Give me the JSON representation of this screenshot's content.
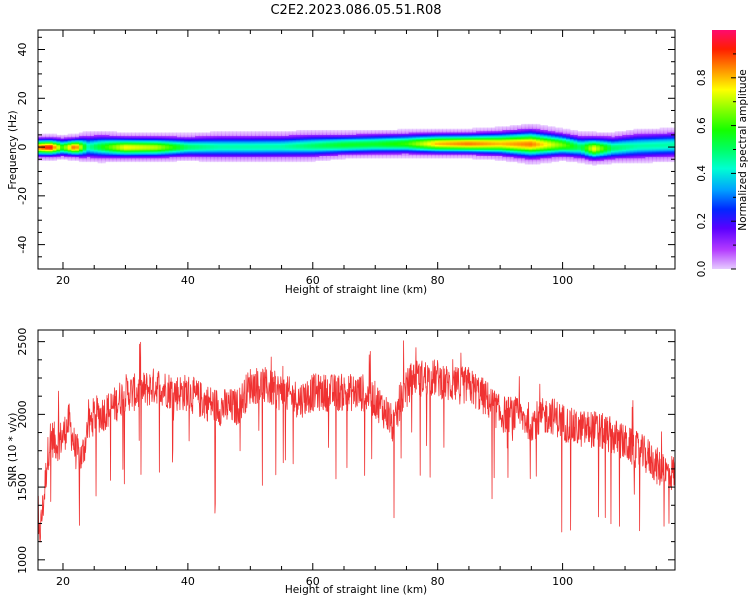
{
  "title": "C2E2.2023.086.05.51.R08",
  "top_panel": {
    "xlabel": "Height of straight line (km)",
    "ylabel": "Frequency (Hz)",
    "xlim": [
      16,
      118
    ],
    "ylim": [
      -50,
      48
    ],
    "xticks": [
      20,
      40,
      60,
      80,
      100
    ],
    "yticks": [
      -40,
      -20,
      0,
      20,
      40
    ]
  },
  "bottom_panel": {
    "xlabel": "Height of straight line (km)",
    "ylabel": "SNR (10 * v/v)",
    "xlim": [
      16,
      118
    ],
    "ylim": [
      930,
      2580
    ],
    "xticks": [
      20,
      40,
      60,
      80,
      100
    ],
    "yticks": [
      1000,
      1500,
      2000,
      2500
    ],
    "line_color": "#f03232"
  },
  "colorbar": {
    "label": "Normalized spectral amplitude",
    "ticks": [
      "0.0",
      "0.2",
      "0.4",
      "0.6",
      "0.8"
    ],
    "range": [
      0,
      1
    ]
  },
  "chart_data": [
    {
      "type": "heatmap",
      "panel": "top",
      "title": "C2E2.2023.086.05.51.R08",
      "xlabel": "Height of straight line (km)",
      "ylabel": "Frequency (Hz)",
      "xlim": [
        16,
        118
      ],
      "ylim": [
        -50,
        48
      ],
      "colormap": "gist_rainbow (red=1.0 high, violet=0.0 low)",
      "colorbar_label": "Normalized spectral amplitude",
      "ridge": {
        "description": "narrow band of high amplitude near 0 Hz",
        "height_km": [
          16,
          18,
          20,
          22,
          24,
          26,
          30,
          35,
          40,
          45,
          50,
          55,
          60,
          65,
          70,
          75,
          80,
          85,
          90,
          95,
          100,
          103,
          105,
          108,
          112,
          118
        ],
        "center_hz": [
          0,
          0,
          0,
          0,
          0.2,
          0.2,
          0,
          0,
          0.1,
          0.2,
          0.2,
          0.3,
          0.6,
          1,
          1.3,
          1.5,
          1.5,
          1.5,
          1.5,
          1.3,
          1,
          0,
          -0.5,
          -0.3,
          0.5,
          1
        ],
        "peak_amplitude": [
          0.85,
          0.95,
          0.6,
          0.9,
          0.45,
          0.55,
          0.75,
          0.7,
          0.5,
          0.45,
          0.45,
          0.45,
          0.5,
          0.55,
          0.55,
          0.6,
          0.8,
          0.85,
          0.8,
          0.85,
          0.65,
          0.5,
          0.75,
          0.5,
          0.45,
          0.45
        ],
        "halfwidth_hz": [
          3.5,
          3.5,
          3.5,
          3.5,
          4.5,
          4.5,
          4,
          4,
          4,
          4.5,
          4.5,
          4.5,
          4.5,
          4,
          4,
          4,
          4,
          4,
          4.5,
          5.5,
          4.5,
          4.5,
          4.5,
          4.5,
          5,
          5
        ]
      }
    },
    {
      "type": "line",
      "panel": "bottom",
      "xlabel": "Height of straight line (km)",
      "ylabel": "SNR (10 * v/v)",
      "xlim": [
        16,
        118
      ],
      "ylim": [
        930,
        2580
      ],
      "series": [
        {
          "color": "#f03232",
          "x": [
            16,
            16.5,
            17,
            17.5,
            18,
            19,
            20,
            21,
            22,
            23,
            24,
            25,
            26,
            28,
            30,
            32,
            35,
            38,
            40,
            42,
            45,
            48,
            50,
            52,
            55,
            58,
            60,
            62,
            65,
            68,
            70,
            72,
            73,
            74,
            76,
            78,
            80,
            82,
            85,
            88,
            90,
            92,
            95,
            98,
            100,
            102,
            105,
            108,
            110,
            112,
            114,
            116,
            118
          ],
          "y": [
            1100,
            1250,
            1450,
            1700,
            1850,
            1800,
            1850,
            1950,
            1750,
            1700,
            1900,
            2000,
            2000,
            2050,
            2150,
            2150,
            2200,
            2150,
            2150,
            2100,
            2050,
            2050,
            2200,
            2200,
            2150,
            2100,
            2150,
            2150,
            2150,
            2150,
            2100,
            2000,
            1900,
            2100,
            2250,
            2250,
            2250,
            2200,
            2200,
            2100,
            2000,
            2000,
            1950,
            2000,
            1950,
            1900,
            1900,
            1850,
            1800,
            1750,
            1700,
            1600,
            1600
          ]
        }
      ]
    }
  ]
}
